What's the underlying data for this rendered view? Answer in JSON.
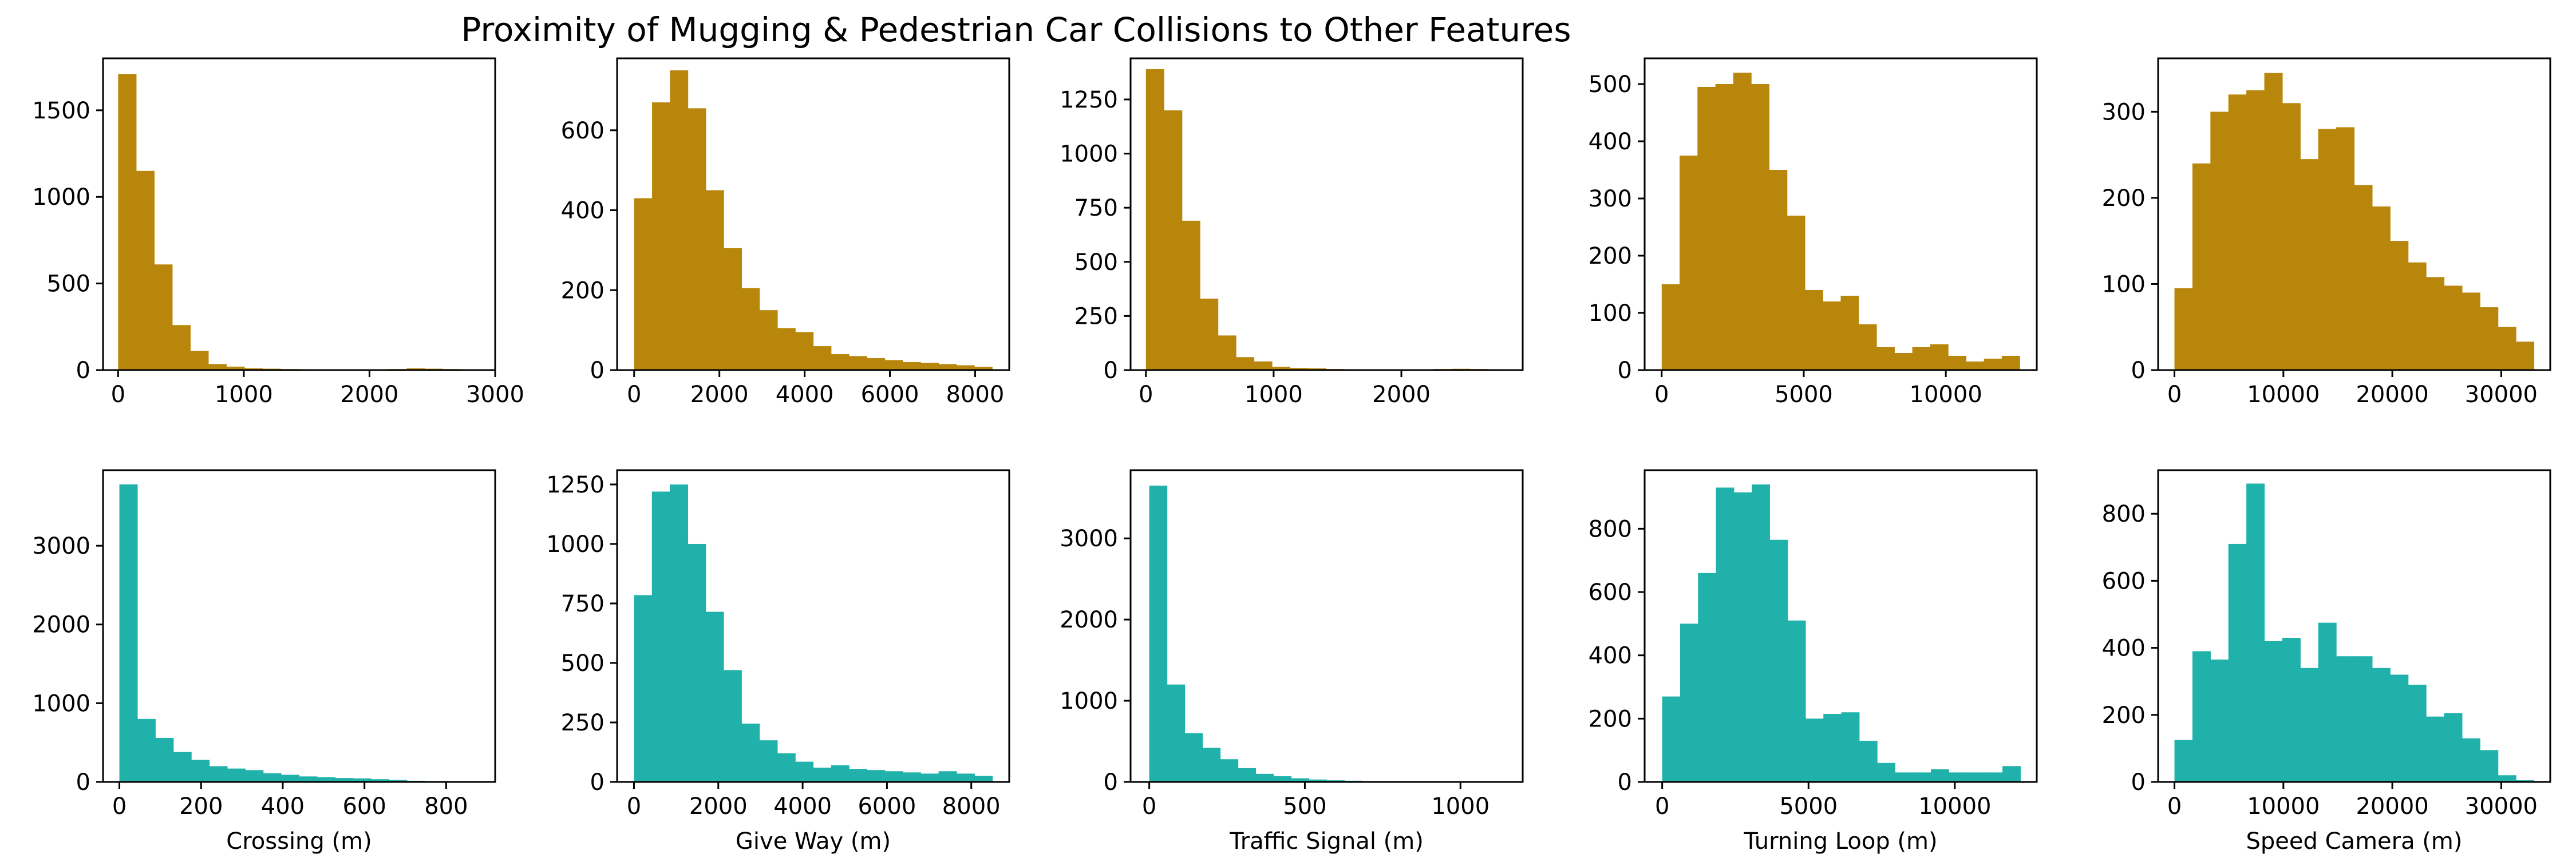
{
  "title": "Proximity of Mugging & Pedestrian Car Collisions to Other Features",
  "colors": {
    "top": "#b8860b",
    "bottom": "#20b2aa"
  },
  "chart_data": [
    {
      "type": "bar",
      "row": 0,
      "col": 0,
      "color": "#b8860b",
      "xlabel": "",
      "bin_start": 0,
      "bin_width": 143.5,
      "values": [
        1710,
        1150,
        610,
        260,
        110,
        35,
        20,
        10,
        8,
        6,
        5,
        4,
        3,
        3,
        3,
        6,
        10,
        8,
        6,
        4
      ],
      "xlim": [
        -120,
        3000
      ],
      "ylim": [
        0,
        1800
      ],
      "xticks": [
        0,
        1000,
        2000,
        3000
      ],
      "yticks": [
        0,
        500,
        1000,
        1500
      ]
    },
    {
      "type": "bar",
      "row": 0,
      "col": 1,
      "color": "#b8860b",
      "xlabel": "",
      "bin_start": 0,
      "bin_width": 420,
      "values": [
        430,
        670,
        750,
        655,
        450,
        305,
        205,
        150,
        105,
        95,
        60,
        40,
        35,
        30,
        25,
        20,
        18,
        15,
        12,
        8
      ],
      "xlim": [
        -400,
        8800
      ],
      "ylim": [
        0,
        780
      ],
      "xticks": [
        0,
        2000,
        4000,
        6000,
        8000
      ],
      "yticks": [
        0,
        200,
        400,
        600
      ]
    },
    {
      "type": "bar",
      "row": 0,
      "col": 2,
      "color": "#b8860b",
      "xlabel": "",
      "bin_start": 0,
      "bin_width": 141,
      "values": [
        1390,
        1200,
        690,
        330,
        160,
        60,
        40,
        15,
        10,
        8,
        5,
        4,
        3,
        3,
        3,
        3,
        5,
        6,
        5,
        4
      ],
      "xlim": [
        -120,
        2950
      ],
      "ylim": [
        0,
        1440
      ],
      "xticks": [
        0,
        1000,
        2000
      ],
      "yticks": [
        0,
        250,
        500,
        750,
        1000,
        1250
      ]
    },
    {
      "type": "bar",
      "row": 0,
      "col": 3,
      "color": "#b8860b",
      "xlabel": "",
      "bin_start": 0,
      "bin_width": 630,
      "values": [
        150,
        375,
        495,
        500,
        520,
        500,
        350,
        270,
        140,
        120,
        130,
        80,
        40,
        30,
        40,
        45,
        25,
        15,
        20,
        25
      ],
      "xlim": [
        -600,
        13200
      ],
      "ylim": [
        0,
        545
      ],
      "xticks": [
        0,
        5000,
        10000
      ],
      "yticks": [
        0,
        100,
        200,
        300,
        400,
        500
      ]
    },
    {
      "type": "bar",
      "row": 0,
      "col": 4,
      "color": "#b8860b",
      "xlabel": "",
      "bin_start": 0,
      "bin_width": 1650,
      "values": [
        95,
        240,
        300,
        320,
        325,
        345,
        310,
        245,
        280,
        282,
        215,
        190,
        150,
        125,
        108,
        98,
        90,
        73,
        50,
        33
      ],
      "xlim": [
        -1500,
        34500
      ],
      "ylim": [
        0,
        362
      ],
      "xticks": [
        0,
        10000,
        20000,
        30000
      ],
      "yticks": [
        0,
        100,
        200,
        300
      ]
    },
    {
      "type": "bar",
      "row": 1,
      "col": 0,
      "color": "#20b2aa",
      "xlabel": "Crossing (m)",
      "bin_start": 0,
      "bin_width": 44,
      "values": [
        3780,
        800,
        560,
        380,
        280,
        200,
        170,
        150,
        110,
        90,
        70,
        60,
        50,
        45,
        35,
        25,
        15,
        10,
        8,
        5
      ],
      "xlim": [
        -40,
        920
      ],
      "ylim": [
        0,
        3960
      ],
      "xticks": [
        0,
        200,
        400,
        600,
        800
      ],
      "yticks": [
        0,
        1000,
        2000,
        3000
      ]
    },
    {
      "type": "bar",
      "row": 1,
      "col": 1,
      "color": "#20b2aa",
      "xlabel": "Give Way (m)",
      "bin_start": 0,
      "bin_width": 425,
      "values": [
        785,
        1220,
        1250,
        1000,
        715,
        470,
        245,
        175,
        120,
        85,
        60,
        70,
        55,
        50,
        45,
        40,
        35,
        45,
        35,
        25
      ],
      "xlim": [
        -400,
        8900
      ],
      "ylim": [
        0,
        1310
      ],
      "xticks": [
        0,
        2000,
        4000,
        6000,
        8000
      ],
      "yticks": [
        0,
        250,
        500,
        750,
        1000,
        1250
      ]
    },
    {
      "type": "bar",
      "row": 1,
      "col": 2,
      "color": "#20b2aa",
      "xlabel": "Traffic Signal (m)",
      "bin_start": 0,
      "bin_width": 57,
      "values": [
        3650,
        1200,
        600,
        420,
        280,
        170,
        100,
        70,
        45,
        30,
        20,
        15,
        10,
        8,
        6,
        5,
        4,
        3,
        3,
        2
      ],
      "xlim": [
        -60,
        1200
      ],
      "ylim": [
        0,
        3840
      ],
      "xticks": [
        0,
        500,
        1000
      ],
      "yticks": [
        0,
        1000,
        2000,
        3000
      ]
    },
    {
      "type": "bar",
      "row": 1,
      "col": 3,
      "color": "#20b2aa",
      "xlabel": "Turning Loop (m)",
      "bin_start": 0,
      "bin_width": 612,
      "values": [
        270,
        500,
        660,
        930,
        915,
        940,
        765,
        510,
        200,
        215,
        220,
        130,
        60,
        30,
        30,
        40,
        30,
        30,
        30,
        50
      ],
      "xlim": [
        -600,
        12800
      ],
      "ylim": [
        0,
        985
      ],
      "xticks": [
        0,
        5000,
        10000
      ],
      "yticks": [
        0,
        200,
        400,
        600,
        800
      ]
    },
    {
      "type": "bar",
      "row": 1,
      "col": 4,
      "color": "#20b2aa",
      "xlabel": "Speed Camera (m)",
      "bin_start": 0,
      "bin_width": 1650,
      "values": [
        125,
        390,
        365,
        710,
        890,
        420,
        430,
        340,
        475,
        375,
        375,
        340,
        320,
        290,
        195,
        205,
        130,
        95,
        20,
        5
      ],
      "xlim": [
        -1500,
        34500
      ],
      "ylim": [
        0,
        930
      ],
      "xticks": [
        0,
        10000,
        20000,
        30000
      ],
      "yticks": [
        0,
        200,
        400,
        600,
        800
      ]
    }
  ]
}
